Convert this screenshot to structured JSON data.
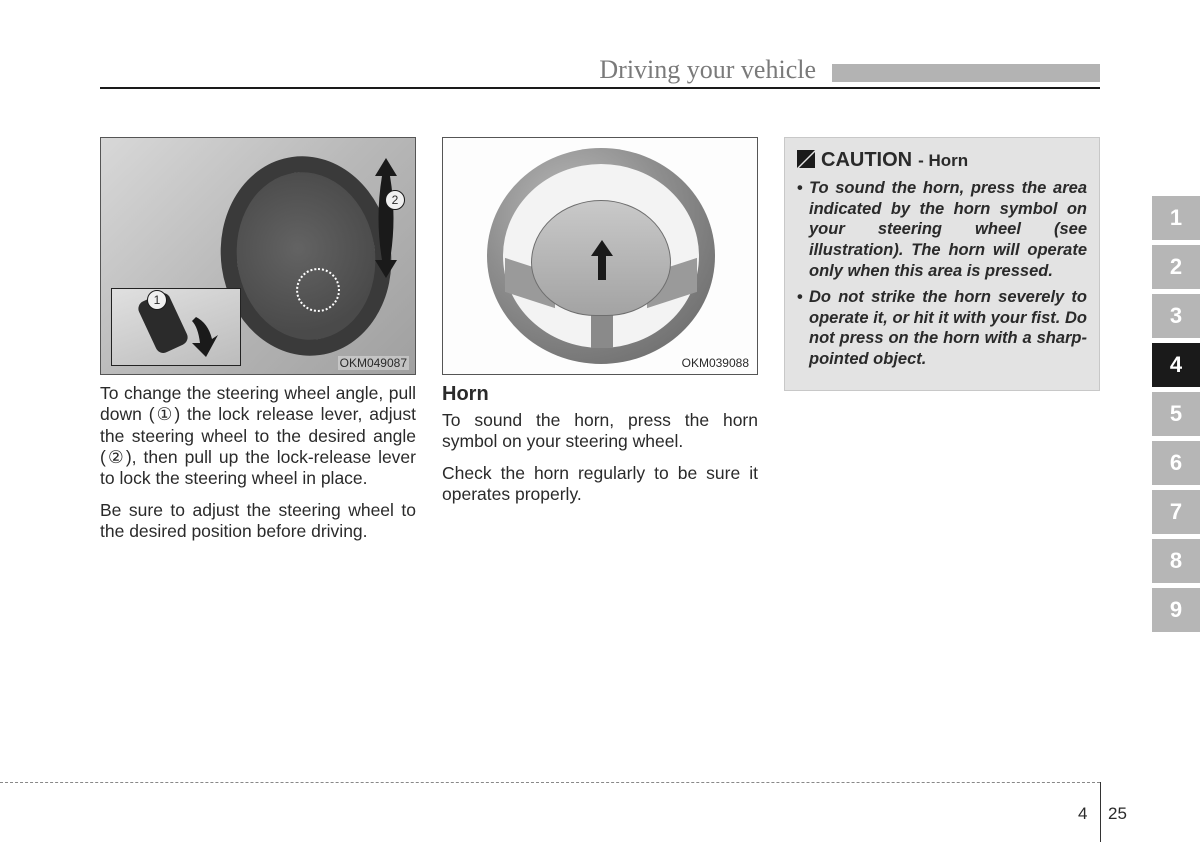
{
  "header": {
    "title": "Driving your vehicle"
  },
  "columns": {
    "left": {
      "figure_code": "OKM049087",
      "callout1": "1",
      "callout2": "2",
      "para1": "To change the steering wheel angle, pull down (①) the lock release lever, adjust the steering wheel to the desired angle (②), then pull up the lock-release lever to lock the steering wheel in place.",
      "para2": "Be sure to adjust the steering wheel to the desired position before driving."
    },
    "middle": {
      "figure_code": "OKM039088",
      "heading": "Horn",
      "para1": "To sound the horn, press the horn symbol on your steering wheel.",
      "para2": "Check the horn regularly to be sure it operates properly."
    },
    "right": {
      "caution_title": "CAUTION",
      "caution_sub": "- Horn",
      "bullet1": "To sound the horn, press the area indicated by the horn symbol on your steering wheel (see illustration). The horn will operate only when this area is pressed.",
      "bullet2": "Do not strike the horn severely to operate it, or hit it with your fist. Do not press on the horn with a sharp-pointed object."
    }
  },
  "tabs": {
    "items": [
      "1",
      "2",
      "3",
      "4",
      "5",
      "6",
      "7",
      "8",
      "9"
    ],
    "active_index": 3
  },
  "footer": {
    "chapter": "4",
    "page": "25"
  },
  "colors": {
    "tab_bg": "#b6b6b6",
    "tab_active_bg": "#1a1a1a",
    "header_bar": "#b3b3b3",
    "caution_bg": "#e3e3e3"
  }
}
